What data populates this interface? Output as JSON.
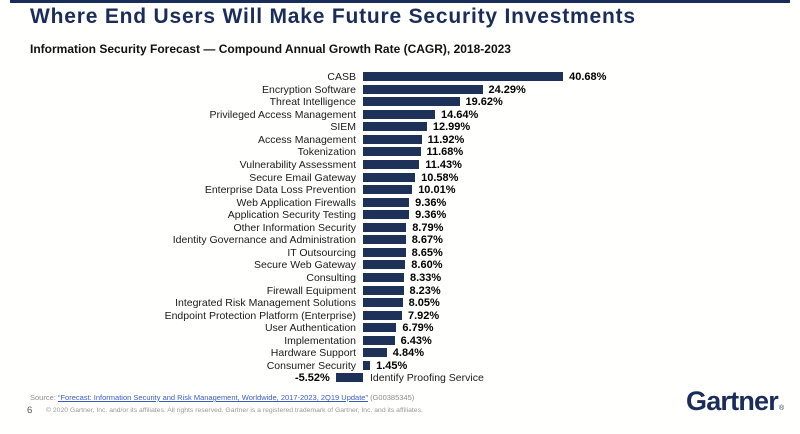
{
  "header": {
    "title": "Where End Users Will Make Future Security Investments",
    "subtitle": "Information Security Forecast — Compound Annual Growth Rate (CAGR), 2018-2023"
  },
  "colors": {
    "navy": "#1a2d5a",
    "bar": "#1e3158",
    "link_blue": "#3a5dbe",
    "footer_gray": "#8c8c8c"
  },
  "chart_data": {
    "type": "bar",
    "orientation": "horizontal",
    "title": "Information Security Forecast — Compound Annual Growth Rate (CAGR), 2018-2023",
    "unit": "%",
    "value_label_format": "0.00%",
    "grid": false,
    "legend": false,
    "bar_color": "#1e3158",
    "categories": [
      "CASB",
      "Encryption Software",
      "Threat Intelligence",
      "Privileged Access Management",
      "SIEM",
      "Access Management",
      "Tokenization",
      "Vulnerability Assessment",
      "Secure Email Gateway",
      "Enterprise Data Loss Prevention",
      "Web Application Firewalls",
      "Application Security Testing",
      "Other Information Security",
      "Identity Governance and Administration",
      "IT Outsourcing",
      "Secure Web Gateway",
      "Consulting",
      "Firewall Equipment",
      "Integrated Risk Management Solutions",
      "Endpoint Protection Platform (Enterprise)",
      "User Authentication",
      "Implementation",
      "Hardware Support",
      "Consumer Security",
      "Identify Proofing Service"
    ],
    "values": [
      40.68,
      24.29,
      19.62,
      14.64,
      12.99,
      11.92,
      11.68,
      11.43,
      10.58,
      10.01,
      9.36,
      9.36,
      8.79,
      8.67,
      8.65,
      8.6,
      8.33,
      8.23,
      8.05,
      7.92,
      6.79,
      6.43,
      4.84,
      1.45,
      -5.52
    ],
    "xlim": [
      -5.52,
      40.68
    ]
  },
  "footer": {
    "source_prefix": "Source:",
    "source_link": "“Forecast: Information Security and Risk Management, Worldwide, 2017-2023, 2Q19 Update”",
    "source_doc_id": "(G00385345)",
    "page_number": "6",
    "copyright": "© 2020 Gartner, Inc. and/or its affiliates. All rights reserved. Gartner is a registered trademark of Gartner, Inc. and its affiliates.",
    "logo_text": "Gartner",
    "logo_registered": "®"
  }
}
